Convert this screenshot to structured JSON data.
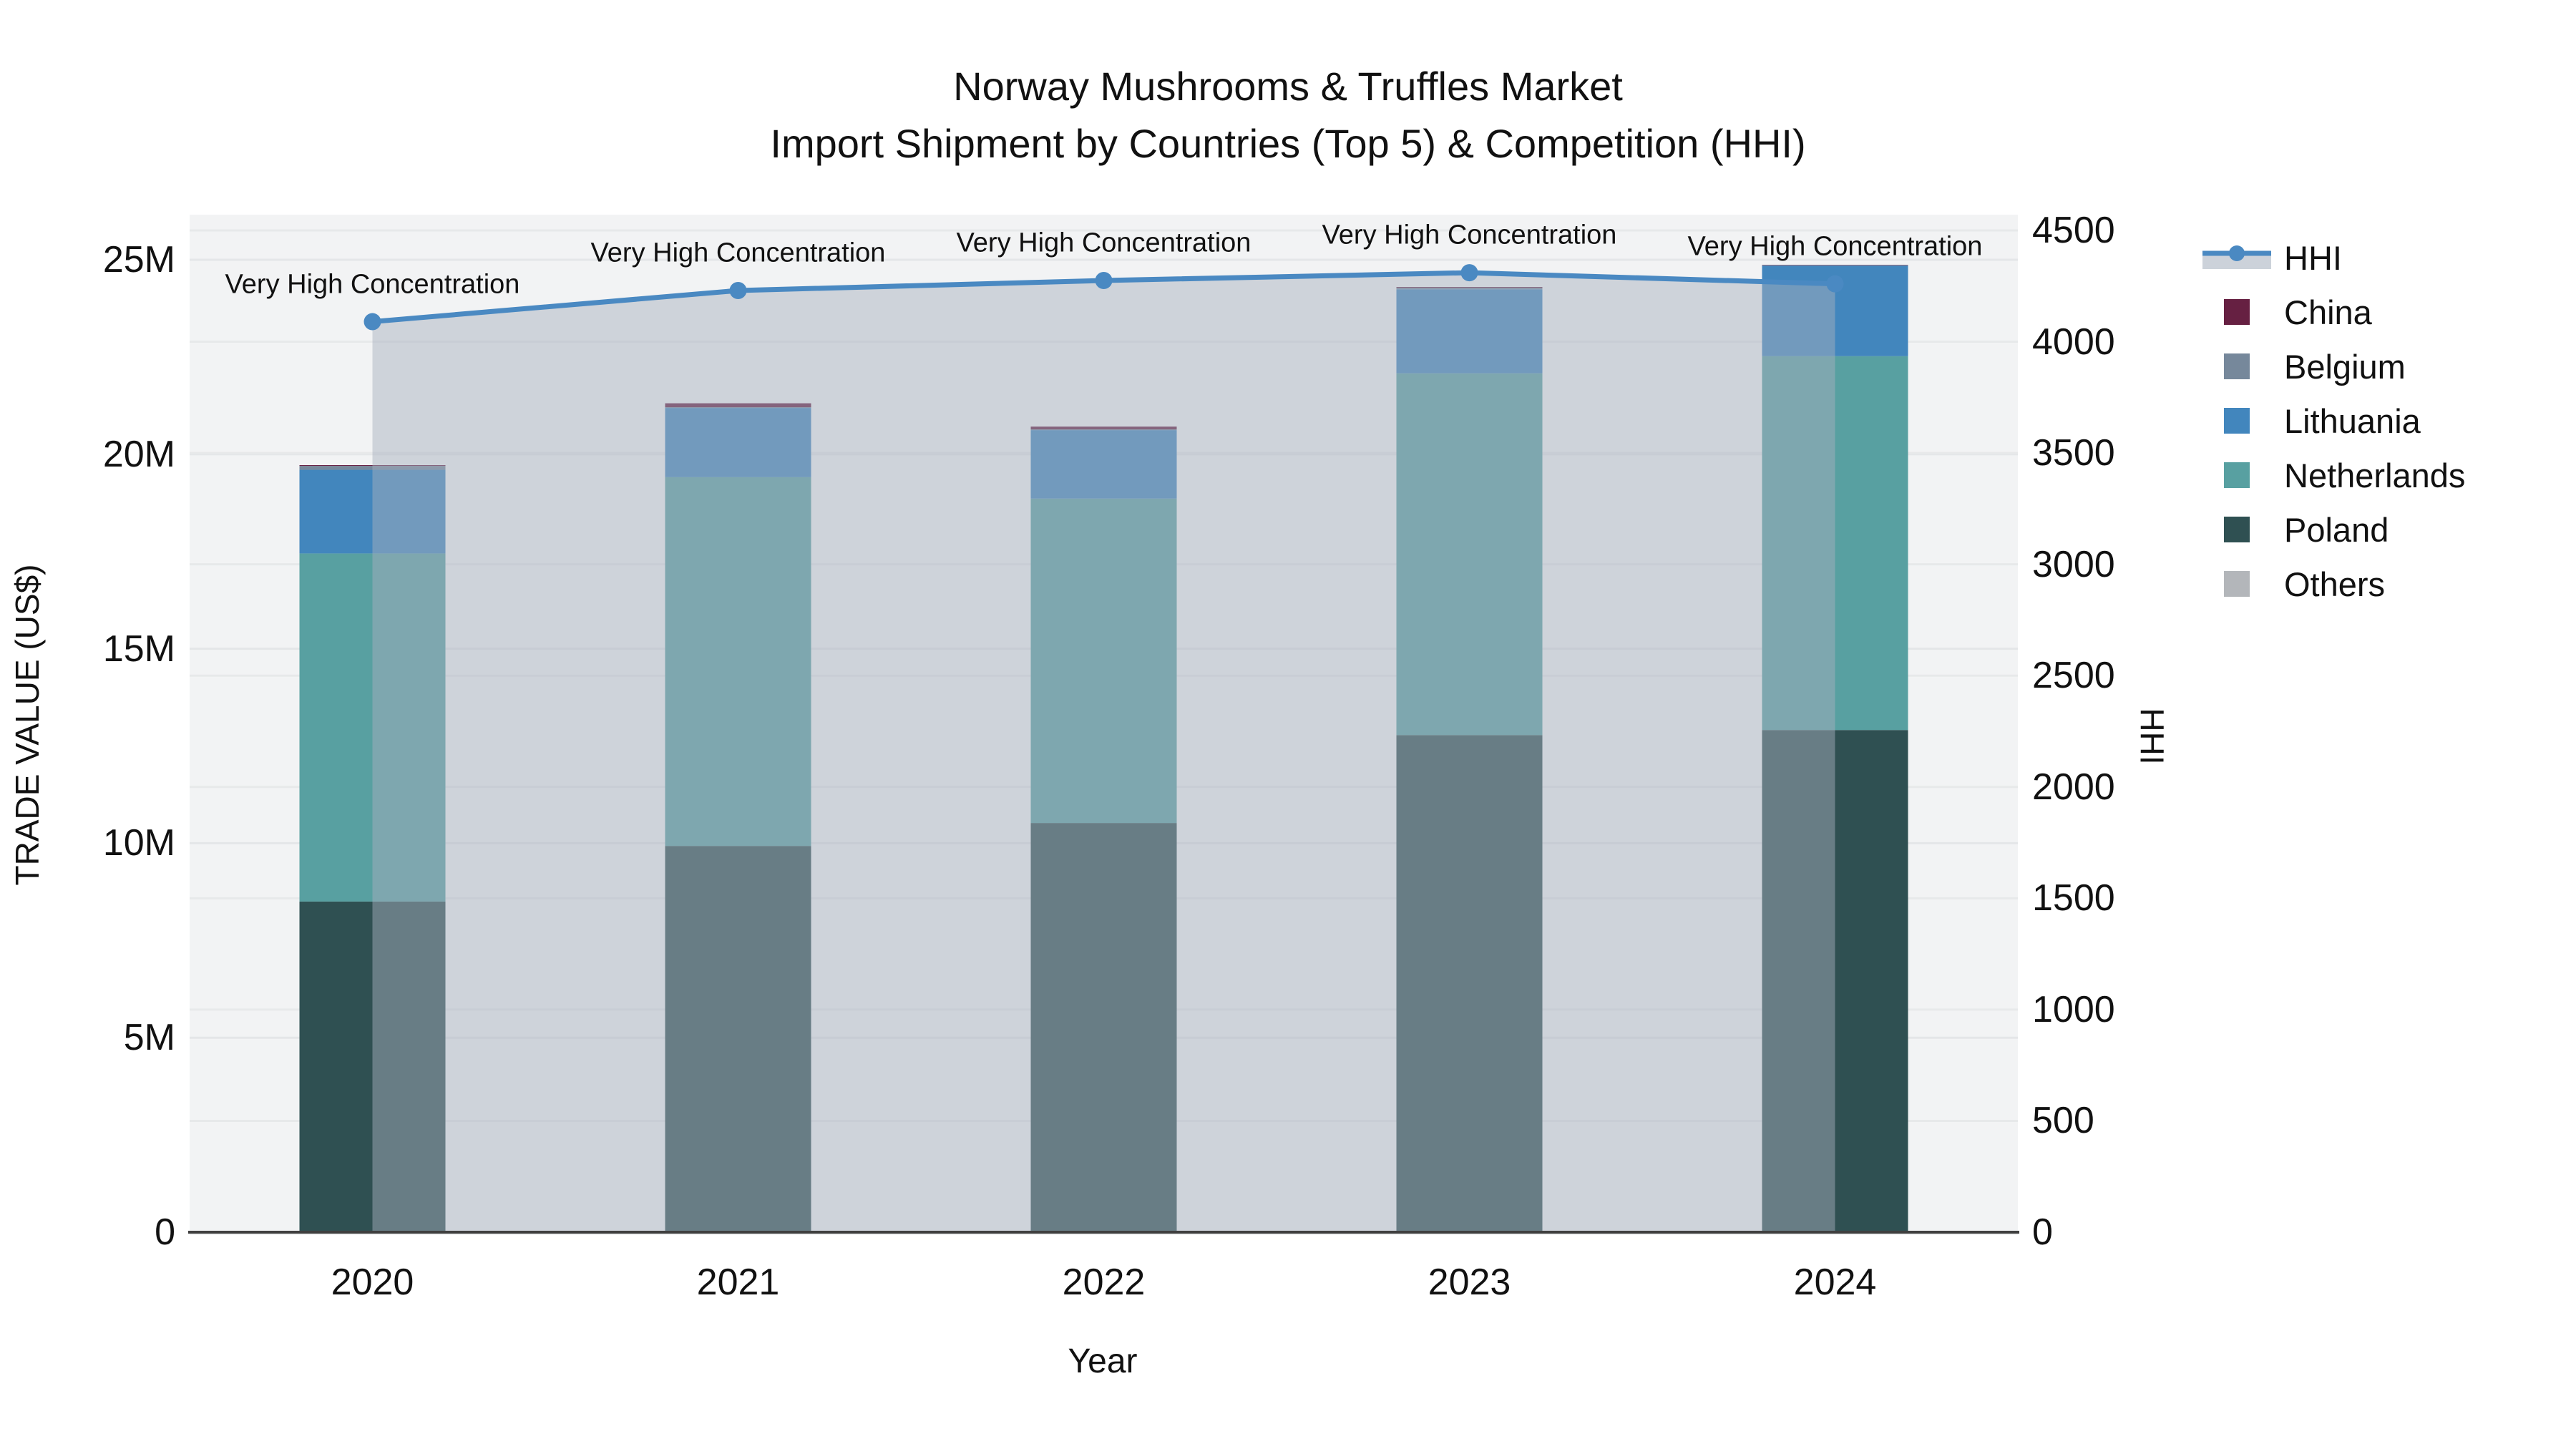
{
  "title": {
    "line1": "Norway Mushrooms & Truffles Market",
    "line2": "Import Shipment by Countries (Top 5) & Competition (HHI)"
  },
  "legend": [
    {
      "id": "hhi",
      "label": "HHI",
      "type": "line-marker",
      "color": "#4a89c2",
      "band_color": "#ccd2da"
    },
    {
      "id": "china",
      "label": "China",
      "type": "swatch",
      "color": "#662042"
    },
    {
      "id": "belgium",
      "label": "Belgium",
      "type": "swatch",
      "color": "#76889b"
    },
    {
      "id": "lithuania",
      "label": "Lithuania",
      "type": "swatch",
      "color": "#4286bd"
    },
    {
      "id": "netherlands",
      "label": "Netherlands",
      "type": "swatch",
      "color": "#58a0a1"
    },
    {
      "id": "poland",
      "label": "Poland",
      "type": "swatch",
      "color": "#2f5052"
    },
    {
      "id": "others",
      "label": "Others",
      "type": "swatch",
      "color": "#b3b6ba"
    }
  ],
  "axes": {
    "x": {
      "title": "Year",
      "ticks": [
        "2020",
        "2021",
        "2022",
        "2023",
        "2024"
      ]
    },
    "y_left": {
      "title": "TRADE VALUE (US$)",
      "ticks": [
        "0",
        "5M",
        "10M",
        "15M",
        "20M",
        "25M"
      ],
      "tick_values_millions": [
        0,
        5,
        10,
        15,
        20,
        25
      ]
    },
    "y_right": {
      "title": "HHI",
      "ticks": [
        "0",
        "500",
        "1000",
        "1500",
        "2000",
        "2500",
        "3000",
        "3500",
        "4000",
        "4500"
      ],
      "tick_values": [
        0,
        500,
        1000,
        1500,
        2000,
        2500,
        3000,
        3500,
        4000,
        4500
      ]
    }
  },
  "chart_data": {
    "type": "combo-stacked-bar-line",
    "categories": [
      "2020",
      "2021",
      "2022",
      "2023",
      "2024"
    ],
    "bar_unit": "million US$",
    "stack_order_bottom_to_top": [
      "Poland",
      "Netherlands",
      "Lithuania",
      "Belgium",
      "China",
      "Others"
    ],
    "series": [
      {
        "name": "China",
        "color": "#662042",
        "values": [
          0.02,
          0.1,
          0.07,
          0.02,
          0.01
        ]
      },
      {
        "name": "Belgium",
        "color": "#76889b",
        "values": [
          0.1,
          0.02,
          0.02,
          0.04,
          0.01
        ]
      },
      {
        "name": "Lithuania",
        "color": "#4286bd",
        "values": [
          2.15,
          1.78,
          1.76,
          2.16,
          2.33
        ]
      },
      {
        "name": "Netherlands",
        "color": "#58a0a1",
        "values": [
          8.95,
          9.48,
          8.34,
          9.3,
          9.61
        ]
      },
      {
        "name": "Poland",
        "color": "#2f5052",
        "values": [
          8.5,
          9.93,
          10.52,
          12.78,
          12.91
        ]
      },
      {
        "name": "Others",
        "color": "#b3b6ba",
        "values": [
          0,
          0,
          0,
          0,
          0
        ]
      }
    ],
    "line_series": {
      "name": "HHI",
      "axis": "right",
      "color": "#4a89c2",
      "fill_color": "rgba(167,176,190,0.48)",
      "values": [
        4090,
        4230,
        4275,
        4310,
        4260
      ]
    },
    "annotations": [
      "Very High Concentration",
      "Very High Concentration",
      "Very High Concentration",
      "Very High Concentration",
      "Very High Concentration"
    ],
    "ylim_left_millions": [
      0,
      26.2
    ],
    "ylim_right": [
      0,
      4570
    ],
    "grid": true,
    "legend_position": "right"
  }
}
